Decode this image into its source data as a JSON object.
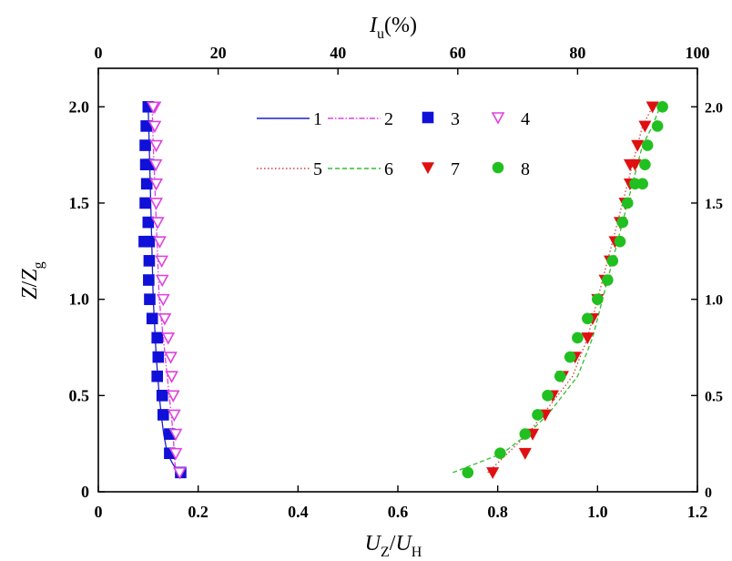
{
  "chart_data": {
    "type": "scatter",
    "axes": {
      "bottom": {
        "title_main": "U",
        "title_main_sub": "Z",
        "title_sep": "/",
        "title_den": "U",
        "title_den_sub": "H",
        "range": [
          0,
          1.2
        ],
        "ticks": [
          0,
          0.2,
          0.4,
          0.6,
          0.8,
          1.0,
          1.2
        ],
        "tick_labels": [
          "0",
          "0.2",
          "0.4",
          "0.6",
          "0.8",
          "1.0",
          "1.2"
        ]
      },
      "top": {
        "title_main": "I",
        "title_main_sub": "u",
        "title_suffix": "(%)",
        "range": [
          0,
          100
        ],
        "ticks": [
          0,
          20,
          40,
          60,
          80,
          100
        ],
        "tick_labels": [
          "0",
          "20",
          "40",
          "60",
          "80",
          "100"
        ]
      },
      "left": {
        "title_main": "Z",
        "title_sep": "/",
        "title_den": "Z",
        "title_den_sub": "g",
        "range": [
          0,
          2.2
        ],
        "ticks": [
          0,
          0.5,
          1.0,
          1.5,
          2.0
        ],
        "tick_labels": [
          "0",
          "0.5",
          "1.0",
          "1.5",
          "2.0"
        ]
      },
      "right": {
        "range": [
          0,
          2.2
        ],
        "ticks": [
          0,
          0.5,
          1.0,
          1.5,
          2.0
        ],
        "tick_labels": [
          "0",
          "0.5",
          "1.0",
          "1.5",
          "2.0"
        ]
      }
    },
    "grid": false,
    "legend_position": "top-center",
    "series": [
      {
        "name": "1",
        "kind": "line",
        "style": "solid",
        "color": "#1f1fc8",
        "x": [
          0.1,
          0.102,
          0.104,
          0.106,
          0.108,
          0.11,
          0.113,
          0.116,
          0.119,
          0.122,
          0.126,
          0.131,
          0.138,
          0.148,
          0.16
        ],
        "y": [
          2.0,
          1.8,
          1.6,
          1.4,
          1.2,
          1.0,
          0.85,
          0.7,
          0.6,
          0.5,
          0.4,
          0.3,
          0.2,
          0.15,
          0.1
        ]
      },
      {
        "name": "2",
        "kind": "line",
        "style": "dashdot",
        "color": "#e040e0",
        "x": [
          0.108,
          0.11,
          0.113,
          0.116,
          0.119,
          0.122,
          0.126,
          0.13,
          0.134,
          0.138,
          0.142,
          0.146,
          0.15,
          0.152,
          0.155
        ],
        "y": [
          2.0,
          1.8,
          1.6,
          1.4,
          1.2,
          1.0,
          0.9,
          0.8,
          0.7,
          0.6,
          0.5,
          0.4,
          0.3,
          0.2,
          0.1
        ]
      },
      {
        "name": "3",
        "kind": "marker",
        "marker": "square",
        "color": "#1010d8",
        "x": [
          0.165,
          0.143,
          0.143,
          0.13,
          0.128,
          0.118,
          0.12,
          0.118,
          0.108,
          0.103,
          0.101,
          0.102,
          0.102,
          0.1,
          0.092,
          0.094,
          0.097,
          0.101,
          0.095,
          0.094,
          0.096,
          0.1
        ],
        "y": [
          0.1,
          0.2,
          0.3,
          0.4,
          0.5,
          0.6,
          0.7,
          0.8,
          0.9,
          1.0,
          1.1,
          1.2,
          1.3,
          1.4,
          1.3,
          1.5,
          1.6,
          1.7,
          1.7,
          1.8,
          1.9,
          2.0
        ]
      },
      {
        "name": "4",
        "kind": "marker",
        "marker": "triangle-down-open",
        "color": "#e040e0",
        "x": [
          0.163,
          0.155,
          0.155,
          0.152,
          0.15,
          0.147,
          0.145,
          0.14,
          0.133,
          0.13,
          0.128,
          0.127,
          0.123,
          0.119,
          0.116,
          0.116,
          0.115,
          0.116,
          0.113,
          0.113,
          0.11
        ],
        "y": [
          0.1,
          0.2,
          0.3,
          0.4,
          0.5,
          0.6,
          0.7,
          0.8,
          0.9,
          1.0,
          1.1,
          1.2,
          1.3,
          1.4,
          1.5,
          1.6,
          1.7,
          1.8,
          1.9,
          2.0,
          2.0
        ]
      },
      {
        "name": "5",
        "kind": "line",
        "style": "dotted",
        "color": "#d04040",
        "x": [
          0.78,
          0.82,
          0.86,
          0.89,
          0.92,
          0.95,
          0.98,
          1.0,
          1.02,
          1.04,
          1.06,
          1.075,
          1.09,
          1.11
        ],
        "y": [
          0.1,
          0.2,
          0.3,
          0.4,
          0.5,
          0.6,
          0.8,
          1.0,
          1.2,
          1.4,
          1.6,
          1.75,
          1.9,
          2.0
        ]
      },
      {
        "name": "6",
        "kind": "line",
        "style": "dashed",
        "color": "#30c030",
        "x": [
          0.71,
          0.76,
          0.81,
          0.86,
          0.9,
          0.93,
          0.96,
          0.99,
          1.01,
          1.03,
          1.05,
          1.07,
          1.09,
          1.11,
          1.125
        ],
        "y": [
          0.1,
          0.15,
          0.2,
          0.3,
          0.4,
          0.5,
          0.6,
          0.8,
          1.0,
          1.2,
          1.4,
          1.6,
          1.8,
          1.9,
          2.0
        ]
      },
      {
        "name": "7",
        "kind": "marker",
        "marker": "triangle-down",
        "color": "#e01010",
        "x": [
          0.79,
          0.855,
          0.87,
          0.895,
          0.91,
          0.93,
          0.955,
          0.98,
          0.99,
          1.0,
          1.015,
          1.025,
          1.035,
          1.045,
          1.055,
          1.065,
          1.065,
          1.075,
          1.08,
          1.095,
          1.11
        ],
        "y": [
          0.1,
          0.2,
          0.3,
          0.4,
          0.5,
          0.6,
          0.7,
          0.8,
          0.9,
          1.0,
          1.1,
          1.2,
          1.3,
          1.4,
          1.5,
          1.6,
          1.7,
          1.7,
          1.8,
          1.9,
          2.0
        ]
      },
      {
        "name": "8",
        "kind": "marker",
        "marker": "circle",
        "color": "#20c020",
        "x": [
          0.74,
          0.805,
          0.855,
          0.88,
          0.9,
          0.925,
          0.945,
          0.96,
          0.98,
          1.0,
          1.02,
          1.03,
          1.045,
          1.05,
          1.06,
          1.075,
          1.09,
          1.095,
          1.1,
          1.12,
          1.13
        ],
        "y": [
          0.1,
          0.2,
          0.3,
          0.4,
          0.5,
          0.6,
          0.7,
          0.8,
          0.9,
          1.0,
          1.1,
          1.2,
          1.3,
          1.4,
          1.5,
          1.6,
          1.6,
          1.7,
          1.8,
          1.9,
          2.0
        ]
      }
    ]
  }
}
